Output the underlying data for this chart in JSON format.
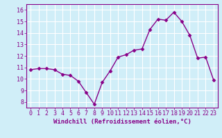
{
  "x": [
    0,
    1,
    2,
    3,
    4,
    5,
    6,
    7,
    8,
    9,
    10,
    11,
    12,
    13,
    14,
    15,
    16,
    17,
    18,
    19,
    20,
    21,
    22,
    23
  ],
  "y": [
    10.8,
    10.9,
    10.9,
    10.8,
    10.4,
    10.3,
    9.8,
    8.8,
    7.8,
    9.7,
    10.7,
    11.9,
    12.1,
    12.5,
    12.6,
    14.3,
    15.2,
    15.1,
    15.8,
    15.0,
    13.8,
    11.8,
    11.9,
    9.9
  ],
  "xlabel": "Windchill (Refroidissement éolien,°C)",
  "xlim": [
    -0.5,
    23.5
  ],
  "ylim": [
    7.5,
    16.5
  ],
  "yticks": [
    8,
    9,
    10,
    11,
    12,
    13,
    14,
    15,
    16
  ],
  "xticks": [
    0,
    1,
    2,
    3,
    4,
    5,
    6,
    7,
    8,
    9,
    10,
    11,
    12,
    13,
    14,
    15,
    16,
    17,
    18,
    19,
    20,
    21,
    22,
    23
  ],
  "line_color": "#880088",
  "marker": "D",
  "marker_size": 2.5,
  "bg_color": "#d0eef8",
  "grid_color": "#ffffff",
  "tick_color": "#880088",
  "label_color": "#880088",
  "font_size_xlabel": 6.5,
  "font_size_ticks": 6.0,
  "linewidth": 1.0
}
